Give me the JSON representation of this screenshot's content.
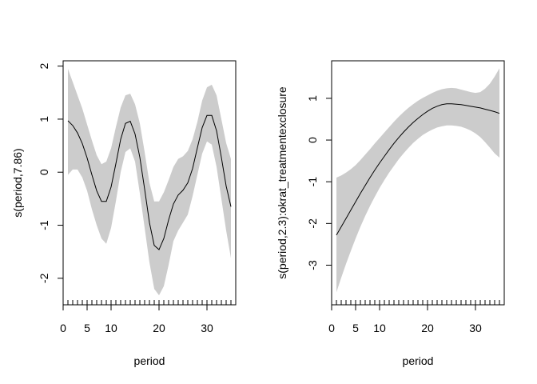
{
  "chart_data": [
    {
      "type": "line",
      "title": "",
      "xlabel": "period",
      "ylabel": "s(period,7.86)",
      "xlim": [
        0,
        36
      ],
      "ylim": [
        -2.5,
        2.1
      ],
      "x_ticks": [
        0,
        5,
        10,
        20,
        30
      ],
      "y_ticks": [
        -2,
        -1,
        0,
        1,
        2
      ],
      "grid": false,
      "x": [
        1,
        2,
        3,
        4,
        5,
        6,
        7,
        8,
        9,
        10,
        11,
        12,
        13,
        14,
        15,
        16,
        17,
        18,
        19,
        20,
        21,
        22,
        23,
        24,
        25,
        26,
        27,
        28,
        29,
        30,
        31,
        32,
        33,
        34,
        35
      ],
      "series": [
        {
          "values": [
            0.97,
            0.88,
            0.74,
            0.54,
            0.27,
            -0.05,
            -0.35,
            -0.55,
            -0.55,
            -0.28,
            0.16,
            0.62,
            0.92,
            0.96,
            0.72,
            0.28,
            -0.32,
            -0.95,
            -1.38,
            -1.46,
            -1.25,
            -0.9,
            -0.6,
            -0.43,
            -0.34,
            -0.2,
            0.07,
            0.46,
            0.84,
            1.07,
            1.07,
            0.78,
            0.28,
            -0.26,
            -0.65
          ]
        }
      ],
      "band_upper": [
        1.95,
        1.7,
        1.45,
        1.2,
        0.9,
        0.6,
        0.32,
        0.15,
        0.2,
        0.45,
        0.85,
        1.22,
        1.45,
        1.48,
        1.28,
        0.92,
        0.38,
        -0.2,
        -0.55,
        -0.55,
        -0.38,
        -0.15,
        0.1,
        0.25,
        0.3,
        0.4,
        0.62,
        0.95,
        1.35,
        1.6,
        1.65,
        1.45,
        1.0,
        0.55,
        0.25
      ],
      "band_lower": [
        -0.05,
        0.05,
        0.05,
        -0.1,
        -0.35,
        -0.7,
        -1.0,
        -1.25,
        -1.35,
        -1.05,
        -0.55,
        0.0,
        0.38,
        0.45,
        0.2,
        -0.4,
        -1.05,
        -1.7,
        -2.2,
        -2.32,
        -2.15,
        -1.75,
        -1.3,
        -1.1,
        -0.95,
        -0.8,
        -0.45,
        -0.05,
        0.35,
        0.58,
        0.52,
        0.1,
        -0.5,
        -1.1,
        -1.62
      ],
      "rug": [
        1,
        2,
        3,
        4,
        5,
        6,
        7,
        8,
        9,
        10,
        11,
        12,
        13,
        14,
        15,
        16,
        17,
        18,
        19,
        20,
        21,
        22,
        23,
        24,
        25,
        26,
        27,
        28,
        29,
        30,
        31,
        32,
        33,
        34,
        35
      ],
      "band_color": "#cccccc",
      "line_color": "#000000"
    },
    {
      "type": "line",
      "title": "",
      "xlabel": "period",
      "ylabel": "s(period,2.3):okrat_treatmentexclosure",
      "xlim": [
        0,
        36
      ],
      "ylim": [
        -3.95,
        1.9
      ],
      "x_ticks": [
        0,
        5,
        10,
        20,
        30
      ],
      "y_ticks": [
        -3,
        -2,
        -1,
        0,
        1
      ],
      "grid": false,
      "x": [
        1,
        2,
        3,
        4,
        5,
        6,
        7,
        8,
        9,
        10,
        11,
        12,
        13,
        14,
        15,
        16,
        17,
        18,
        19,
        20,
        21,
        22,
        23,
        24,
        25,
        26,
        27,
        28,
        29,
        30,
        31,
        32,
        33,
        34,
        35
      ],
      "series": [
        {
          "values": [
            -2.28,
            -2.08,
            -1.88,
            -1.68,
            -1.48,
            -1.28,
            -1.09,
            -0.9,
            -0.72,
            -0.55,
            -0.39,
            -0.23,
            -0.08,
            0.06,
            0.19,
            0.31,
            0.42,
            0.52,
            0.61,
            0.69,
            0.76,
            0.81,
            0.85,
            0.87,
            0.87,
            0.86,
            0.85,
            0.83,
            0.81,
            0.79,
            0.77,
            0.74,
            0.71,
            0.68,
            0.64
          ]
        }
      ],
      "band_upper": [
        -0.9,
        -0.85,
        -0.78,
        -0.7,
        -0.6,
        -0.48,
        -0.35,
        -0.22,
        -0.08,
        0.05,
        0.18,
        0.31,
        0.44,
        0.56,
        0.67,
        0.77,
        0.86,
        0.94,
        1.01,
        1.07,
        1.13,
        1.18,
        1.22,
        1.24,
        1.25,
        1.24,
        1.21,
        1.18,
        1.15,
        1.13,
        1.15,
        1.23,
        1.35,
        1.52,
        1.72
      ],
      "band_lower": [
        -3.65,
        -3.3,
        -2.97,
        -2.66,
        -2.36,
        -2.08,
        -1.82,
        -1.58,
        -1.36,
        -1.15,
        -0.96,
        -0.78,
        -0.62,
        -0.46,
        -0.32,
        -0.19,
        -0.07,
        0.03,
        0.12,
        0.19,
        0.25,
        0.3,
        0.33,
        0.35,
        0.35,
        0.34,
        0.32,
        0.28,
        0.23,
        0.16,
        0.07,
        -0.05,
        -0.18,
        -0.32,
        -0.42
      ],
      "rug": [
        1,
        2,
        3,
        4,
        5,
        6,
        7,
        8,
        9,
        10,
        11,
        12,
        13,
        14,
        15,
        16,
        17,
        18,
        19,
        20,
        21,
        22,
        23,
        24,
        25,
        26,
        27,
        28,
        29,
        30,
        31,
        32,
        33,
        34,
        35
      ],
      "band_color": "#cccccc",
      "line_color": "#000000"
    }
  ]
}
